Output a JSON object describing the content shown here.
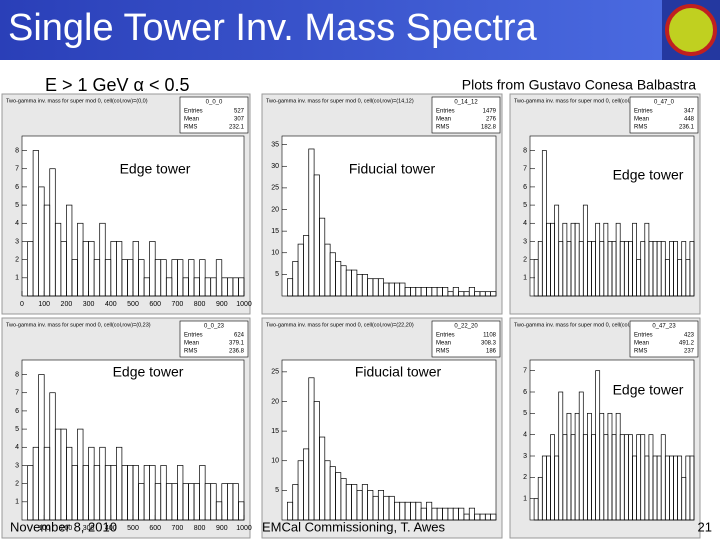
{
  "header": {
    "title": "Single Tower Inv. Mass Spectra",
    "subtitle": "E > 1 GeV  α < 0.5",
    "credit": "Plots from Gustavo Conesa Balbastra"
  },
  "bins": [
    0,
    25,
    50,
    75,
    100,
    125,
    150,
    175,
    200,
    225,
    250,
    275,
    300,
    325,
    350,
    375,
    400,
    425,
    450,
    475,
    500,
    525,
    550,
    575,
    600,
    625,
    650,
    675,
    700,
    725,
    750,
    775,
    800,
    825,
    850,
    875,
    900,
    925,
    950,
    975,
    1000
  ],
  "panels": [
    {
      "title": "Two-gamma inv. mass for super mod 0, cell(col,row)=(0,0)",
      "name": "0_0_0",
      "stats": [
        {
          "label": "Entries",
          "value": 527
        },
        {
          "label": "Mean",
          "value": 307
        },
        {
          "label": "RMS",
          "value": 232.1
        }
      ],
      "label": "Edge tower",
      "xlim": [
        0,
        1000
      ],
      "xticks": [
        0,
        100,
        200,
        300,
        400,
        500,
        600,
        700,
        800,
        900,
        1000
      ],
      "ylim": [
        0,
        8.8
      ],
      "yticks": [
        1,
        2,
        3,
        4,
        5,
        6,
        7,
        8
      ],
      "counts": [
        0,
        3,
        8,
        6,
        5,
        7,
        4,
        3,
        5,
        2,
        4,
        3,
        3,
        2,
        4,
        2,
        3,
        3,
        2,
        2,
        3,
        2,
        1,
        3,
        2,
        2,
        1,
        2,
        2,
        1,
        2,
        1,
        2,
        1,
        1,
        2,
        1,
        1,
        1,
        1
      ]
    },
    {
      "title": "Two-gamma inv. mass for super mod 0, cell(col,row)=(14,12)",
      "name": "0_14_12",
      "stats": [
        {
          "label": "Entries",
          "value": 1479
        },
        {
          "label": "Mean",
          "value": 276
        },
        {
          "label": "RMS",
          "value": 182.8
        }
      ],
      "label": "Fiducial tower",
      "xlim": [
        0,
        1000
      ],
      "ylim": [
        0,
        37
      ],
      "yticks": [
        5,
        10,
        15,
        20,
        25,
        30,
        35
      ],
      "counts": [
        0,
        4,
        8,
        12,
        14,
        34,
        28,
        18,
        12,
        10,
        8,
        7,
        6,
        6,
        5,
        5,
        4,
        4,
        4,
        3,
        3,
        3,
        3,
        2,
        2,
        2,
        2,
        2,
        2,
        2,
        2,
        1,
        2,
        1,
        1,
        2,
        1,
        1,
        1,
        1
      ]
    },
    {
      "title": "Two-gamma inv. mass for super mod 0, cell(col,row)=(47,0)",
      "name": "0_47_0",
      "stats": [
        {
          "label": "Entries",
          "value": 347
        },
        {
          "label": "Mean",
          "value": 448
        },
        {
          "label": "RMS",
          "value": 236.1
        }
      ],
      "label": "Edge tower",
      "xlim": [
        0,
        1000
      ],
      "ylim": [
        0,
        8.8
      ],
      "yticks": [
        1,
        2,
        3,
        4,
        5,
        6,
        7,
        8
      ],
      "counts": [
        0,
        2,
        3,
        8,
        4,
        4,
        5,
        3,
        4,
        3,
        4,
        4,
        3,
        5,
        3,
        3,
        4,
        3,
        4,
        3,
        3,
        4,
        3,
        3,
        3,
        4,
        2,
        3,
        4,
        3,
        3,
        3,
        3,
        2,
        3,
        3,
        2,
        3,
        2,
        3
      ]
    },
    {
      "title": "Two-gamma inv. mass for super mod 0, cell(col,row)=(0,23)",
      "name": "0_0_23",
      "stats": [
        {
          "label": "Entries",
          "value": 624
        },
        {
          "label": "Mean",
          "value": 379.1
        },
        {
          "label": "RMS",
          "value": 236.8
        }
      ],
      "label": "Edge tower",
      "xlim": [
        0,
        1000
      ],
      "xticks": [
        100,
        200,
        300,
        400,
        500,
        600,
        700,
        800,
        900,
        1000
      ],
      "ylim": [
        0,
        8.8
      ],
      "yticks": [
        1,
        2,
        3,
        4,
        5,
        6,
        7,
        8
      ],
      "counts": [
        0,
        3,
        4,
        8,
        4,
        7,
        5,
        5,
        4,
        3,
        5,
        3,
        4,
        3,
        4,
        3,
        3,
        4,
        3,
        3,
        3,
        2,
        3,
        3,
        2,
        3,
        2,
        2,
        3,
        2,
        2,
        2,
        3,
        2,
        2,
        1,
        2,
        2,
        2,
        1
      ]
    },
    {
      "title": "Two-gamma inv. mass for super mod 0, cell(col,row)=(22,20)",
      "name": "0_22_20",
      "stats": [
        {
          "label": "Entries",
          "value": 1108
        },
        {
          "label": "Mean",
          "value": 308.3
        },
        {
          "label": "RMS",
          "value": 186
        }
      ],
      "label": "Fiducial tower",
      "xlim": [
        0,
        1000
      ],
      "ylim": [
        0,
        27
      ],
      "yticks": [
        5,
        10,
        15,
        20,
        25
      ],
      "counts": [
        0,
        3,
        6,
        10,
        12,
        24,
        20,
        14,
        10,
        9,
        8,
        7,
        6,
        6,
        5,
        6,
        5,
        4,
        5,
        4,
        4,
        3,
        3,
        3,
        3,
        3,
        2,
        3,
        2,
        2,
        2,
        2,
        2,
        2,
        1,
        2,
        1,
        1,
        1,
        1
      ]
    },
    {
      "title": "Two-gamma inv. mass for super mod 0, cell(col,row)=(47,23)",
      "name": "0_47_23",
      "stats": [
        {
          "label": "Entries",
          "value": 423
        },
        {
          "label": "Mean",
          "value": 491.2
        },
        {
          "label": "RMS",
          "value": 237
        }
      ],
      "label": "Edge tower",
      "xlim": [
        0,
        1000
      ],
      "ylim": [
        0,
        7.5
      ],
      "yticks": [
        1,
        2,
        3,
        4,
        5,
        6,
        7
      ],
      "counts": [
        0,
        1,
        2,
        3,
        3,
        4,
        3,
        6,
        4,
        5,
        4,
        5,
        6,
        4,
        5,
        4,
        7,
        5,
        4,
        5,
        4,
        5,
        4,
        4,
        4,
        3,
        4,
        4,
        3,
        4,
        3,
        3,
        4,
        3,
        3,
        3,
        3,
        2,
        3,
        3
      ]
    }
  ],
  "footer": {
    "date": "November 8, 2010",
    "event": "EMCal Commissioning, T. Awes",
    "page": 21
  }
}
